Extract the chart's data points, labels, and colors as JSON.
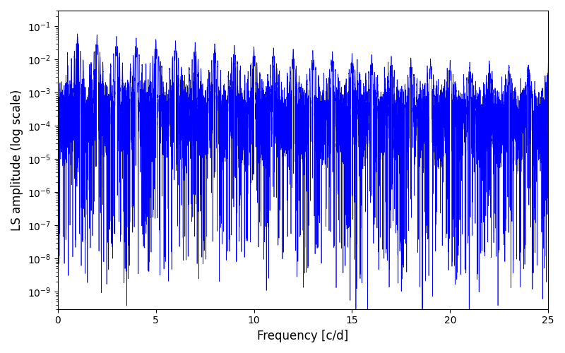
{
  "title": "",
  "xlabel": "Frequency [c/d]",
  "ylabel": "LS amplitude (log scale)",
  "xlim": [
    0,
    25
  ],
  "ylim": [
    3e-10,
    0.3
  ],
  "line_color": "#0000ff",
  "line_width": 0.5,
  "background_color": "#ffffff",
  "figsize": [
    8.0,
    5.0
  ],
  "dpi": 100,
  "freq_max": 25.0,
  "n_points": 20000,
  "seed": 12345
}
